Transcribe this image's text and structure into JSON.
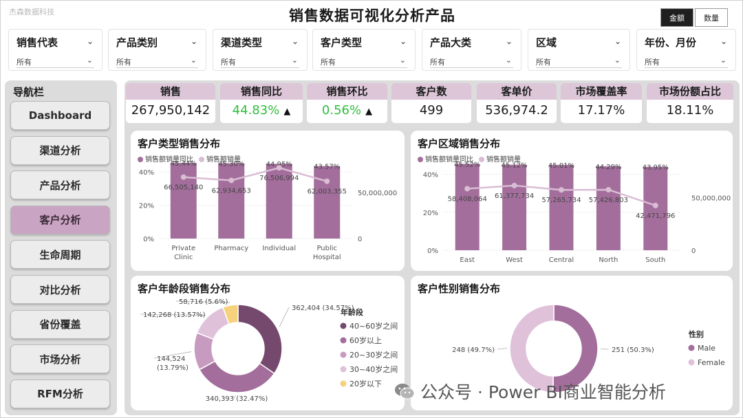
{
  "brand": "杰森数据科技",
  "title": "销售数据可视化分析产品",
  "toggles": {
    "on": "金额",
    "off": "数量"
  },
  "filters": [
    {
      "label": "销售代表",
      "value": "所有"
    },
    {
      "label": "产品类别",
      "value": "所有"
    },
    {
      "label": "渠道类型",
      "value": "所有"
    },
    {
      "label": "客户类型",
      "value": "所有"
    },
    {
      "label": "产品大类",
      "value": "所有"
    },
    {
      "label": "区域",
      "value": "所有"
    },
    {
      "label": "年份、月份",
      "value": "所有"
    }
  ],
  "nav": {
    "title": "导航栏",
    "items": [
      "Dashboard",
      "渠道分析",
      "产品分析",
      "客户分析",
      "生命周期",
      "对比分析",
      "省份覆盖",
      "市场分析",
      "RFM分析"
    ],
    "active_index": 3
  },
  "kpis": [
    {
      "label": "销售",
      "value": "267,950,142"
    },
    {
      "label": "销售同比",
      "value": "44.83%",
      "arrow": "▲",
      "color": "green"
    },
    {
      "label": "销售环比",
      "value": "0.56%",
      "arrow": "▲",
      "color": "green"
    },
    {
      "label": "客户数",
      "value": "499"
    },
    {
      "label": "客单价",
      "value": "536,974.2"
    },
    {
      "label": "市场覆盖率",
      "value": "17.17%"
    },
    {
      "label": "市场份额占比",
      "value": "18.11%"
    }
  ],
  "colors": {
    "bar": "#a36e9c",
    "line": "#d9bdd4",
    "accent": "#caa5c3",
    "kpi_header": "#dcc6d8"
  },
  "chart_data": [
    {
      "type": "bar",
      "title": "客户类型销售分布",
      "legend": [
        "销售额销量同比",
        "销售额销量"
      ],
      "categories": [
        "Private Clinic",
        "Pharmacy",
        "Individual",
        "Public Hospital"
      ],
      "series": [
        {
          "name": "销售额销量同比",
          "values": [
            45.44,
            45.3,
            44.95,
            43.57
          ],
          "labels": [
            "45.44%",
            "45.30%",
            "44.95%",
            "43.57%"
          ]
        },
        {
          "name": "销售额销量",
          "values": [
            66505140,
            62934653,
            76506994,
            62003355
          ],
          "labels": [
            "66,505,140",
            "62,934,653",
            "76,506,994",
            "62,003,355"
          ]
        }
      ],
      "left_ticks": [
        "40%",
        "20%",
        "0%"
      ],
      "right_ticks": [
        "50,000,000",
        "0"
      ]
    },
    {
      "type": "bar",
      "title": "客户区域销售分布",
      "legend": [
        "销售额销量同比",
        "销售额销量"
      ],
      "categories": [
        "East",
        "West",
        "Central",
        "North",
        "South"
      ],
      "series": [
        {
          "name": "销售额销量同比",
          "values": [
            45.52,
            45.12,
            45.01,
            44.29,
            43.95
          ],
          "labels": [
            "45.52%",
            "45.12%",
            "45.01%",
            "44.29%",
            "43.95%"
          ]
        },
        {
          "name": "销售额销量",
          "values": [
            58408064,
            61377734,
            57265734,
            57426803,
            42471796
          ],
          "labels": [
            "58,408,064",
            "61,377,734",
            "57,265,734",
            "57,426,803",
            "42,471,796"
          ]
        }
      ],
      "left_ticks": [
        "40%",
        "20%",
        "0%"
      ],
      "right_ticks": [
        "50,000,000",
        "0"
      ]
    },
    {
      "type": "pie",
      "title": "客户年龄段销售分布",
      "legend_title": "年龄段",
      "slices": [
        {
          "name": "40~60岁之间",
          "value": 362404,
          "label": "362,404 (34.57%)",
          "color": "#75486e"
        },
        {
          "name": "60岁以上",
          "value": 340393,
          "label": "340,393 (32.47%)",
          "color": "#a36e9c"
        },
        {
          "name": "20~30岁之间",
          "value": 144524,
          "label": "144,524 (13.79%)",
          "color": "#c79bc0"
        },
        {
          "name": "30~40岁之间",
          "value": 142268,
          "label": "142,268 (13.57%)",
          "color": "#dfc2da"
        },
        {
          "name": "20岁以下",
          "value": 58716,
          "label": "58,716 (5.6%)",
          "color": "#f7d27c"
        }
      ]
    },
    {
      "type": "pie",
      "title": "客户性别销售分布",
      "legend_title": "性别",
      "slices": [
        {
          "name": "Male",
          "value": 251,
          "label": "251 (50.3%)",
          "color": "#a36e9c"
        },
        {
          "name": "Female",
          "value": 248,
          "label": "248 (49.7%)",
          "color": "#dfc2da"
        }
      ]
    }
  ],
  "watermark": "公众号 · Power BI商业智能分析",
  "watermark_icon": "wechat-icon"
}
